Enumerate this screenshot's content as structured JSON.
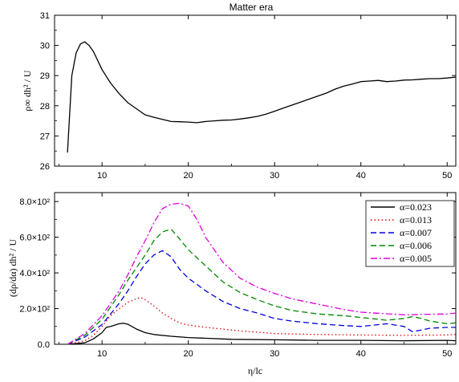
{
  "chart_data": [
    {
      "type": "line",
      "title": "Matter era",
      "ylabel": "ρ∞ dh² / U",
      "xlabel": "",
      "xlim": [
        4.5,
        51
      ],
      "ylim": [
        26,
        31
      ],
      "xticks": [
        "10",
        "20",
        "30",
        "40",
        "50"
      ],
      "yticks": [
        "26",
        "27",
        "28",
        "29",
        "30",
        "31"
      ],
      "series": [
        {
          "color": "#000000",
          "dash": "solid",
          "x": [
            6.0,
            6.5,
            7.0,
            7.5,
            8.0,
            8.5,
            9.0,
            10.0,
            11.0,
            12.0,
            13.0,
            14.0,
            15.0,
            16.0,
            17.0,
            18.0,
            19.0,
            20.0,
            21.0,
            22.0,
            23.0,
            24.0,
            25.0,
            26.0,
            27.0,
            28.0,
            29.0,
            30.0,
            31.0,
            32.0,
            33.0,
            34.0,
            35.0,
            36.0,
            37.0,
            38.0,
            39.0,
            40.0,
            41.0,
            42.0,
            43.0,
            44.0,
            45.0,
            46.0,
            47.0,
            48.0,
            49.0,
            50.0,
            51.0
          ],
          "y": [
            26.45,
            29.0,
            29.75,
            30.05,
            30.12,
            30.0,
            29.8,
            29.2,
            28.75,
            28.4,
            28.1,
            27.9,
            27.7,
            27.62,
            27.55,
            27.48,
            27.47,
            27.46,
            27.44,
            27.48,
            27.5,
            27.52,
            27.53,
            27.56,
            27.6,
            27.65,
            27.72,
            27.82,
            27.92,
            28.02,
            28.12,
            28.22,
            28.32,
            28.42,
            28.55,
            28.65,
            28.72,
            28.8,
            28.82,
            28.84,
            28.8,
            28.82,
            28.85,
            28.86,
            28.88,
            28.9,
            28.9,
            28.92,
            28.95
          ]
        }
      ]
    },
    {
      "type": "line",
      "title": "",
      "ylabel": "(dρ/dα) dh² / U",
      "xlabel": "η/lc",
      "xlim": [
        4.5,
        51
      ],
      "ylim": [
        0,
        850
      ],
      "xticks": [
        "10",
        "20",
        "30",
        "40",
        "50"
      ],
      "yticks": [
        "0.0",
        "2.0×10²",
        "4.0×10²",
        "6.0×10²",
        "8.0×10²"
      ],
      "legend_position": "top-right",
      "series": [
        {
          "name": "α=0.023",
          "color": "#000000",
          "dash": "solid",
          "x": [
            6,
            8,
            9,
            10,
            10.5,
            11,
            12,
            12.5,
            13,
            14,
            15,
            16,
            18,
            20,
            25,
            30,
            35,
            40,
            45,
            50,
            51
          ],
          "y": [
            0,
            8,
            30,
            65,
            95,
            100,
            115,
            118,
            112,
            85,
            65,
            55,
            45,
            38,
            28,
            25,
            22,
            22,
            20,
            22,
            20
          ]
        },
        {
          "name": "α=0.013",
          "color": "#dd0000",
          "dash": "dotted",
          "x": [
            6,
            8,
            9,
            10,
            11,
            12,
            13,
            14,
            14.5,
            15,
            16,
            17,
            18,
            19,
            20,
            22,
            24,
            26,
            28,
            30,
            35,
            40,
            45,
            50,
            51
          ],
          "y": [
            0,
            20,
            50,
            100,
            160,
            200,
            235,
            255,
            262,
            250,
            215,
            175,
            145,
            120,
            108,
            95,
            85,
            75,
            68,
            60,
            55,
            52,
            50,
            52,
            55
          ]
        },
        {
          "name": "α=0.007",
          "color": "#0000dd",
          "dash": "dashed",
          "x": [
            6,
            8,
            10,
            11,
            12,
            13,
            14,
            15,
            16,
            17,
            18,
            19,
            20,
            22,
            24,
            26,
            28,
            30,
            32,
            35,
            38,
            40,
            43,
            45,
            46,
            47,
            48,
            50,
            51
          ],
          "y": [
            0,
            40,
            110,
            170,
            230,
            300,
            380,
            450,
            500,
            525,
            490,
            420,
            370,
            300,
            240,
            200,
            175,
            145,
            130,
            115,
            105,
            100,
            115,
            100,
            70,
            80,
            90,
            95,
            95
          ]
        },
        {
          "name": "α=0.006",
          "color": "#008800",
          "dash": "dashed",
          "x": [
            6,
            8,
            10,
            11,
            12,
            13,
            14,
            15,
            16,
            17,
            18,
            19,
            20,
            22,
            24,
            26,
            28,
            30,
            32,
            35,
            38,
            40,
            43,
            45,
            46,
            47,
            48,
            50,
            51
          ],
          "y": [
            0,
            50,
            140,
            210,
            280,
            360,
            430,
            500,
            580,
            630,
            645,
            590,
            530,
            440,
            350,
            290,
            250,
            215,
            190,
            170,
            160,
            150,
            135,
            145,
            155,
            145,
            130,
            115,
            120
          ]
        },
        {
          "name": "α=0.005",
          "color": "#dd00dd",
          "dash": "dashdot",
          "x": [
            6,
            8,
            10,
            11,
            12,
            13,
            14,
            15,
            16,
            17,
            18,
            19,
            20,
            21,
            22,
            24,
            26,
            28,
            30,
            32,
            35,
            38,
            40,
            45,
            50,
            51
          ],
          "y": [
            0,
            60,
            160,
            230,
            300,
            390,
            490,
            580,
            680,
            760,
            785,
            790,
            775,
            700,
            600,
            460,
            370,
            320,
            285,
            255,
            225,
            195,
            180,
            165,
            170,
            175
          ]
        }
      ]
    }
  ]
}
